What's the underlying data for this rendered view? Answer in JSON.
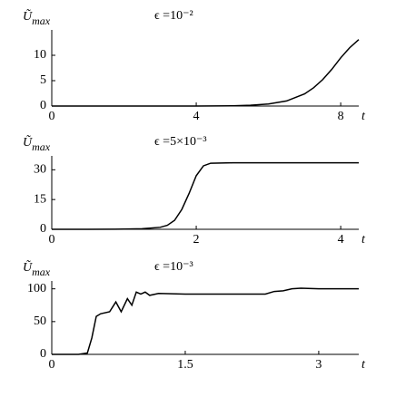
{
  "chart_data": [
    {
      "type": "line",
      "ylabel": "Ũ",
      "ylabel_sub": "max",
      "title": "ϵ =10⁻²",
      "xlabel": "t",
      "color": "#000000",
      "x": [
        0,
        1,
        2,
        3,
        4,
        4.5,
        5,
        5.5,
        6,
        6.5,
        7,
        7.25,
        7.5,
        7.75,
        8,
        8.25,
        8.5
      ],
      "y": [
        0,
        0,
        0,
        0,
        0,
        0.02,
        0.05,
        0.15,
        0.4,
        1,
        2.4,
        3.6,
        5.2,
        7.2,
        9.5,
        11.5,
        13.1
      ],
      "xlim": [
        0,
        8.5
      ],
      "ylim": [
        0,
        15
      ],
      "xticks": [
        0,
        4,
        8
      ],
      "yticks": [
        0,
        5,
        10
      ]
    },
    {
      "type": "line",
      "ylabel": "Ũ",
      "ylabel_sub": "max",
      "title": "ϵ =5×10⁻³",
      "xlabel": "t",
      "color": "#000000",
      "x": [
        0,
        0.5,
        1,
        1.25,
        1.5,
        1.6,
        1.7,
        1.8,
        1.9,
        2,
        2.1,
        2.2,
        2.5,
        3,
        3.5,
        4,
        4.25
      ],
      "y": [
        0,
        0,
        0.1,
        0.3,
        1,
        2,
        4.5,
        10,
        18,
        27,
        32,
        33.3,
        33.5,
        33.5,
        33.5,
        33.5,
        33.5
      ],
      "xlim": [
        0,
        4.25
      ],
      "ylim": [
        0,
        37
      ],
      "xticks": [
        0,
        2,
        4
      ],
      "yticks": [
        0,
        15,
        30
      ]
    },
    {
      "type": "line",
      "ylabel": "Ũ",
      "ylabel_sub": "max",
      "title": "ϵ =10⁻³",
      "xlabel": "t",
      "color": "#000000",
      "x": [
        0,
        0.3,
        0.4,
        0.45,
        0.5,
        0.55,
        0.65,
        0.72,
        0.78,
        0.85,
        0.9,
        0.95,
        1.0,
        1.05,
        1.1,
        1.2,
        1.5,
        2.0,
        2.4,
        2.5,
        2.6,
        2.7,
        2.8,
        3.0,
        3.45
      ],
      "y": [
        0,
        0,
        2,
        25,
        58,
        62,
        65,
        80,
        65,
        85,
        75,
        95,
        92,
        95,
        90,
        93,
        92,
        92,
        92,
        96,
        97,
        100,
        101,
        100,
        100
      ],
      "xlim": [
        0,
        3.45
      ],
      "ylim": [
        0,
        112
      ],
      "xticks": [
        0,
        1.5,
        3
      ],
      "yticks": [
        0,
        50,
        100
      ]
    }
  ]
}
